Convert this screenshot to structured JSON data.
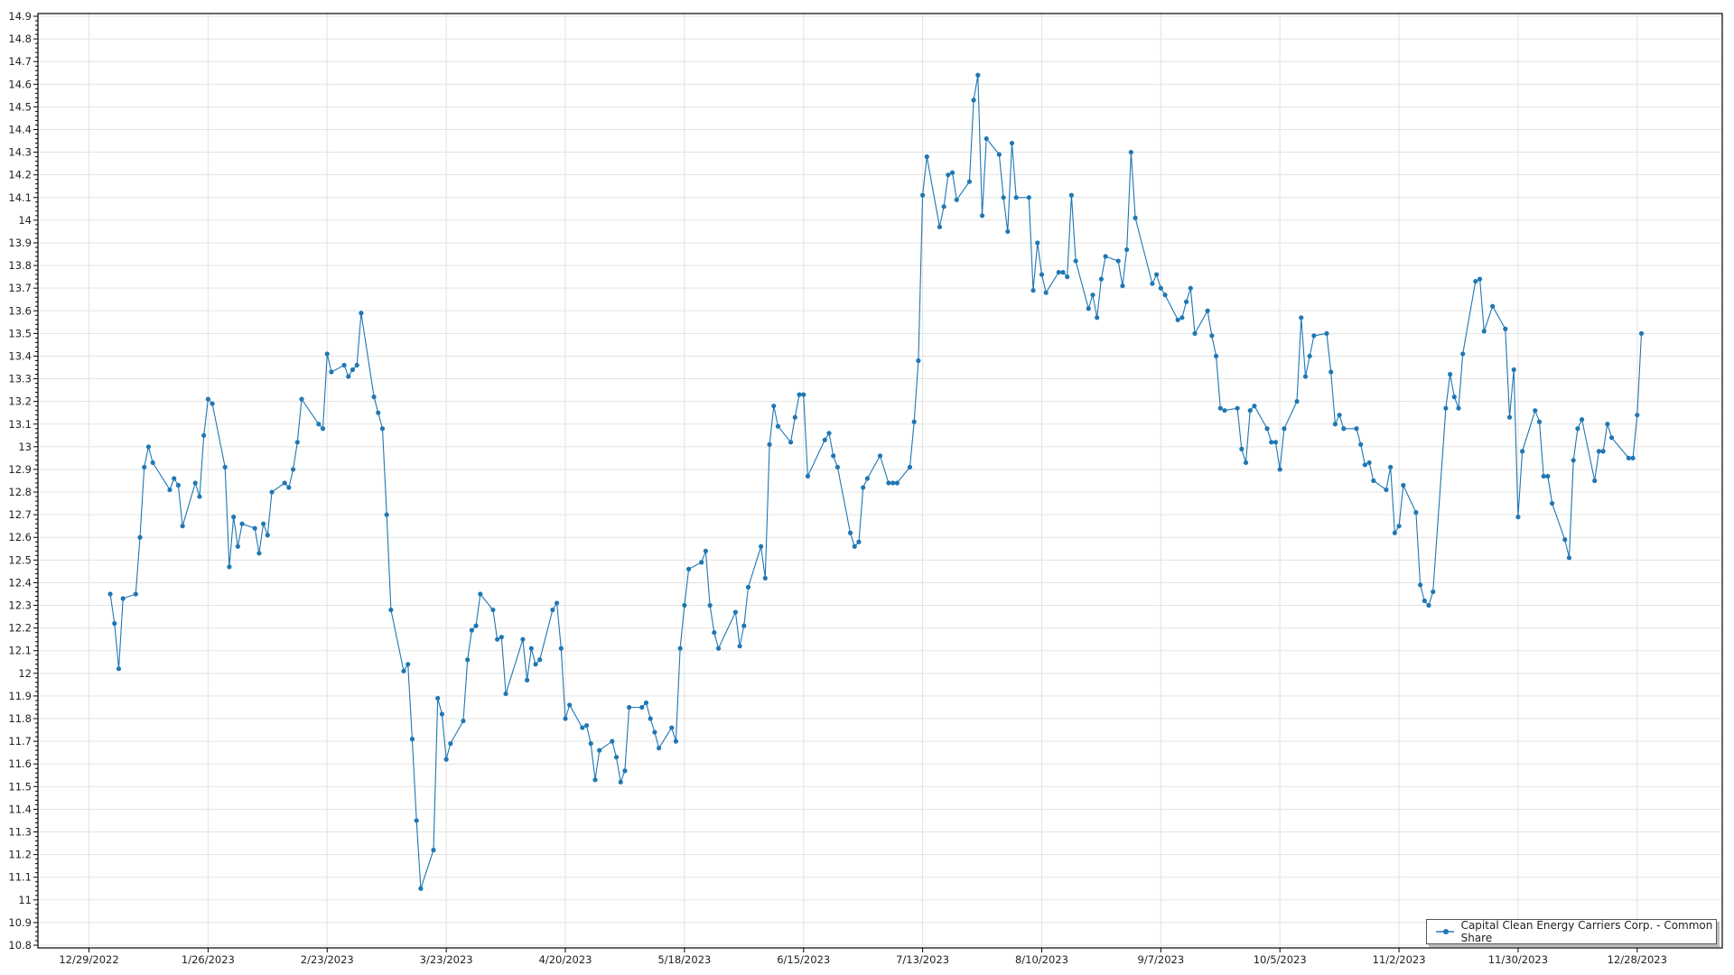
{
  "chart_data": {
    "type": "line",
    "title": "",
    "xlabel": "",
    "ylabel": "",
    "ylim": [
      10.8,
      14.9
    ],
    "xlim": [
      "12/17/2022",
      "1/17/2024"
    ],
    "ytick_step": 0.1,
    "xticks": [
      "12/29/2022",
      "1/26/2023",
      "2/23/2023",
      "3/23/2023",
      "4/20/2023",
      "5/18/2023",
      "6/15/2023",
      "7/13/2023",
      "8/10/2023",
      "9/7/2023",
      "10/5/2023",
      "11/2/2023",
      "11/30/2023",
      "12/28/2023"
    ],
    "grid": true,
    "legend_position": "bottom-right",
    "line_color": "#1f77b4",
    "series": [
      {
        "name": "Capital Clean Energy Carriers Corp. - Common Share",
        "x": [
          "1/3/2023",
          "1/4/2023",
          "1/5/2023",
          "1/6/2023",
          "1/9/2023",
          "1/10/2023",
          "1/11/2023",
          "1/12/2023",
          "1/13/2023",
          "1/17/2023",
          "1/18/2023",
          "1/19/2023",
          "1/20/2023",
          "1/23/2023",
          "1/24/2023",
          "1/25/2023",
          "1/26/2023",
          "1/27/2023",
          "1/30/2023",
          "1/31/2023",
          "2/1/2023",
          "2/2/2023",
          "2/3/2023",
          "2/6/2023",
          "2/7/2023",
          "2/8/2023",
          "2/9/2023",
          "2/10/2023",
          "2/13/2023",
          "2/14/2023",
          "2/15/2023",
          "2/16/2023",
          "2/17/2023",
          "2/21/2023",
          "2/22/2023",
          "2/23/2023",
          "2/24/2023",
          "2/27/2023",
          "2/28/2023",
          "3/1/2023",
          "3/2/2023",
          "3/3/2023",
          "3/6/2023",
          "3/7/2023",
          "3/8/2023",
          "3/9/2023",
          "3/10/2023",
          "3/13/2023",
          "3/14/2023",
          "3/15/2023",
          "3/16/2023",
          "3/17/2023",
          "3/20/2023",
          "3/21/2023",
          "3/22/2023",
          "3/23/2023",
          "3/24/2023",
          "3/27/2023",
          "3/28/2023",
          "3/29/2023",
          "3/30/2023",
          "3/31/2023",
          "4/3/2023",
          "4/4/2023",
          "4/5/2023",
          "4/6/2023",
          "4/10/2023",
          "4/11/2023",
          "4/12/2023",
          "4/13/2023",
          "4/14/2023",
          "4/17/2023",
          "4/18/2023",
          "4/19/2023",
          "4/20/2023",
          "4/21/2023",
          "4/24/2023",
          "4/25/2023",
          "4/26/2023",
          "4/27/2023",
          "4/28/2023",
          "5/1/2023",
          "5/2/2023",
          "5/3/2023",
          "5/4/2023",
          "5/5/2023",
          "5/8/2023",
          "5/9/2023",
          "5/10/2023",
          "5/11/2023",
          "5/12/2023",
          "5/15/2023",
          "5/16/2023",
          "5/17/2023",
          "5/18/2023",
          "5/19/2023",
          "5/22/2023",
          "5/23/2023",
          "5/24/2023",
          "5/25/2023",
          "5/26/2023",
          "5/30/2023",
          "5/31/2023",
          "6/1/2023",
          "6/2/2023",
          "6/5/2023",
          "6/6/2023",
          "6/7/2023",
          "6/8/2023",
          "6/9/2023",
          "6/12/2023",
          "6/13/2023",
          "6/14/2023",
          "6/15/2023",
          "6/16/2023",
          "6/20/2023",
          "6/21/2023",
          "6/22/2023",
          "6/23/2023",
          "6/26/2023",
          "6/27/2023",
          "6/28/2023",
          "6/29/2023",
          "6/30/2023",
          "7/3/2023",
          "7/5/2023",
          "7/6/2023",
          "7/7/2023",
          "7/10/2023",
          "7/11/2023",
          "7/12/2023",
          "7/13/2023",
          "7/14/2023",
          "7/17/2023",
          "7/18/2023",
          "7/19/2023",
          "7/20/2023",
          "7/21/2023",
          "7/24/2023",
          "7/25/2023",
          "7/26/2023",
          "7/27/2023",
          "7/28/2023",
          "7/31/2023",
          "8/1/2023",
          "8/2/2023",
          "8/3/2023",
          "8/4/2023",
          "8/7/2023",
          "8/8/2023",
          "8/9/2023",
          "8/10/2023",
          "8/11/2023",
          "8/14/2023",
          "8/15/2023",
          "8/16/2023",
          "8/17/2023",
          "8/18/2023",
          "8/21/2023",
          "8/22/2023",
          "8/23/2023",
          "8/24/2023",
          "8/25/2023",
          "8/28/2023",
          "8/29/2023",
          "8/30/2023",
          "8/31/2023",
          "9/1/2023",
          "9/5/2023",
          "9/6/2023",
          "9/7/2023",
          "9/8/2023",
          "9/11/2023",
          "9/12/2023",
          "9/13/2023",
          "9/14/2023",
          "9/15/2023",
          "9/18/2023",
          "9/19/2023",
          "9/20/2023",
          "9/21/2023",
          "9/22/2023",
          "9/25/2023",
          "9/26/2023",
          "9/27/2023",
          "9/28/2023",
          "9/29/2023",
          "10/2/2023",
          "10/3/2023",
          "10/4/2023",
          "10/5/2023",
          "10/6/2023",
          "10/9/2023",
          "10/10/2023",
          "10/11/2023",
          "10/12/2023",
          "10/13/2023",
          "10/16/2023",
          "10/17/2023",
          "10/18/2023",
          "10/19/2023",
          "10/20/2023",
          "10/23/2023",
          "10/24/2023",
          "10/25/2023",
          "10/26/2023",
          "10/27/2023",
          "10/30/2023",
          "10/31/2023",
          "11/1/2023",
          "11/2/2023",
          "11/3/2023",
          "11/6/2023",
          "11/7/2023",
          "11/8/2023",
          "11/9/2023",
          "11/10/2023",
          "11/13/2023",
          "11/14/2023",
          "11/15/2023",
          "11/16/2023",
          "11/17/2023",
          "11/20/2023",
          "11/21/2023",
          "11/22/2023",
          "11/24/2023",
          "11/27/2023",
          "11/28/2023",
          "11/29/2023",
          "11/30/2023",
          "12/1/2023",
          "12/4/2023",
          "12/5/2023",
          "12/6/2023",
          "12/7/2023",
          "12/8/2023",
          "12/11/2023",
          "12/12/2023",
          "12/13/2023",
          "12/14/2023",
          "12/15/2023",
          "12/18/2023",
          "12/19/2023",
          "12/20/2023",
          "12/21/2023",
          "12/22/2023",
          "12/26/2023",
          "12/27/2023",
          "12/28/2023",
          "12/29/2023"
        ],
        "values": [
          12.35,
          12.22,
          12.02,
          12.33,
          12.35,
          12.6,
          12.91,
          13.0,
          12.93,
          12.81,
          12.86,
          12.83,
          12.65,
          12.84,
          12.78,
          13.05,
          13.21,
          13.19,
          12.91,
          12.47,
          12.69,
          12.56,
          12.66,
          12.64,
          12.53,
          12.66,
          12.61,
          12.8,
          12.84,
          12.82,
          12.9,
          13.02,
          13.21,
          13.1,
          13.08,
          13.41,
          13.33,
          13.36,
          13.31,
          13.34,
          13.36,
          13.59,
          13.22,
          13.15,
          13.08,
          12.7,
          12.28,
          12.01,
          12.04,
          11.71,
          11.35,
          11.05,
          11.22,
          11.89,
          11.82,
          11.62,
          11.69,
          11.79,
          12.06,
          12.19,
          12.21,
          12.35,
          12.28,
          12.15,
          12.16,
          11.91,
          12.15,
          11.97,
          12.11,
          12.04,
          12.06,
          12.28,
          12.31,
          12.11,
          11.8,
          11.86,
          11.76,
          11.77,
          11.69,
          11.53,
          11.66,
          11.7,
          11.63,
          11.52,
          11.57,
          11.85,
          11.85,
          11.87,
          11.8,
          11.74,
          11.67,
          11.76,
          11.7,
          12.11,
          12.3,
          12.46,
          12.49,
          12.54,
          12.3,
          12.18,
          12.11,
          12.27,
          12.12,
          12.21,
          12.38,
          12.56,
          12.42,
          13.01,
          13.18,
          13.09,
          13.02,
          13.13,
          13.23,
          13.23,
          12.87,
          13.03,
          13.06,
          12.96,
          12.91,
          12.62,
          12.56,
          12.58,
          12.82,
          12.86,
          12.96,
          12.84,
          12.84,
          12.84,
          12.91,
          13.11,
          13.38,
          14.11,
          14.28,
          13.97,
          14.06,
          14.2,
          14.21,
          14.09,
          14.17,
          14.53,
          14.64,
          14.02,
          14.36,
          14.29,
          14.1,
          13.95,
          14.34,
          14.1,
          14.1,
          13.69,
          13.9,
          13.76,
          13.68,
          13.77,
          13.77,
          13.75,
          14.11,
          13.82,
          13.61,
          13.67,
          13.57,
          13.74,
          13.84,
          13.82,
          13.71,
          13.87,
          14.3,
          14.01,
          13.72,
          13.76,
          13.7,
          13.67,
          13.56,
          13.57,
          13.64,
          13.7,
          13.5,
          13.6,
          13.49,
          13.4,
          13.17,
          13.16,
          13.17,
          12.99,
          12.93,
          13.16,
          13.18,
          13.08,
          13.02,
          13.02,
          12.9,
          13.08,
          13.2,
          13.57,
          13.31,
          13.4,
          13.49,
          13.5,
          13.33,
          13.1,
          13.14,
          13.08,
          13.08,
          13.01,
          12.92,
          12.93,
          12.85,
          12.81,
          12.91,
          12.62,
          12.65,
          12.83,
          12.71,
          12.39,
          12.32,
          12.3,
          12.36,
          13.17,
          13.32,
          13.22,
          13.17,
          13.41,
          13.73,
          13.74,
          13.51,
          13.62,
          13.52,
          13.13,
          13.34,
          12.69,
          12.98,
          13.16,
          13.11,
          12.87,
          12.87,
          12.75,
          12.59,
          12.51,
          12.94,
          13.08,
          13.12,
          12.85,
          12.98,
          12.98,
          13.1,
          13.04,
          12.95,
          12.95,
          13.14,
          13.5
        ]
      }
    ]
  }
}
